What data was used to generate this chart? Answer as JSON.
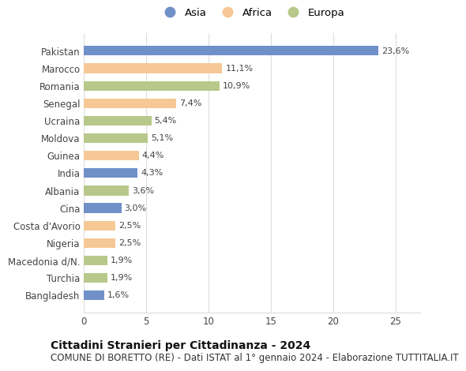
{
  "categories": [
    "Pakistan",
    "Marocco",
    "Romania",
    "Senegal",
    "Ucraina",
    "Moldova",
    "Guinea",
    "India",
    "Albania",
    "Cina",
    "Costa d'Avorio",
    "Nigeria",
    "Macedonia d/N.",
    "Turchia",
    "Bangladesh"
  ],
  "values": [
    23.6,
    11.1,
    10.9,
    7.4,
    5.4,
    5.1,
    4.4,
    4.3,
    3.6,
    3.0,
    2.5,
    2.5,
    1.9,
    1.9,
    1.6
  ],
  "labels": [
    "23,6%",
    "11,1%",
    "10,9%",
    "7,4%",
    "5,4%",
    "5,1%",
    "4,4%",
    "4,3%",
    "3,6%",
    "3,0%",
    "2,5%",
    "2,5%",
    "1,9%",
    "1,9%",
    "1,6%"
  ],
  "continents": [
    "Asia",
    "Africa",
    "Europa",
    "Africa",
    "Europa",
    "Europa",
    "Africa",
    "Asia",
    "Europa",
    "Asia",
    "Africa",
    "Africa",
    "Europa",
    "Europa",
    "Asia"
  ],
  "colors": {
    "Asia": "#7090c8",
    "Africa": "#f5c896",
    "Europa": "#b8c88a"
  },
  "legend": [
    "Asia",
    "Africa",
    "Europa"
  ],
  "legend_colors": [
    "#7090c8",
    "#f5c896",
    "#b8c88a"
  ],
  "xlim": [
    0,
    27
  ],
  "xticks": [
    0,
    5,
    10,
    15,
    20,
    25
  ],
  "title": "Cittadini Stranieri per Cittadinanza - 2024",
  "subtitle": "COMUNE DI BORETTO (RE) - Dati ISTAT al 1° gennaio 2024 - Elaborazione TUTTITALIA.IT",
  "title_fontsize": 10,
  "subtitle_fontsize": 8.5,
  "background_color": "#ffffff",
  "grid_color": "#dddddd"
}
